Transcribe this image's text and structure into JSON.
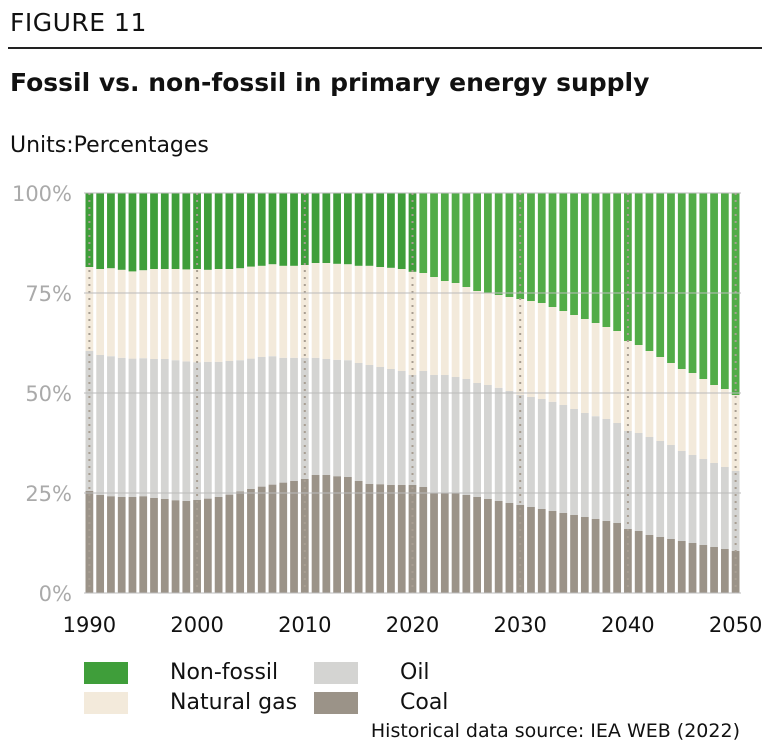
{
  "figure_label": "FIGURE 11",
  "title": "Fossil vs. non-fossil in primary energy supply",
  "units_label": "Units:",
  "units_value": "Percentages",
  "source": "Historical data source: IEA WEB (2022)",
  "colors": {
    "non_fossil": "#3f9e3a",
    "non_fossil_projection": "#52ac48",
    "natural_gas": "#f3eadb",
    "oil": "#d4d4d2",
    "coal": "#9b9388",
    "grid": "#bbbbbb",
    "tick_text": "#aaaaaa"
  },
  "chart_data": {
    "type": "bar",
    "stacked": true,
    "ylim": [
      0,
      100
    ],
    "yticks": [
      "0%",
      "25%",
      "50%",
      "75%",
      "100%"
    ],
    "xticks": [
      "1990",
      "2000",
      "2010",
      "2020",
      "2030",
      "2040",
      "2050"
    ],
    "legend_position": "bottom-left",
    "years": [
      1990,
      1991,
      1992,
      1993,
      1994,
      1995,
      1996,
      1997,
      1998,
      1999,
      2000,
      2001,
      2002,
      2003,
      2004,
      2005,
      2006,
      2007,
      2008,
      2009,
      2010,
      2011,
      2012,
      2013,
      2014,
      2015,
      2016,
      2017,
      2018,
      2019,
      2020,
      2021,
      2022,
      2023,
      2024,
      2025,
      2026,
      2027,
      2028,
      2029,
      2030,
      2031,
      2032,
      2033,
      2034,
      2035,
      2036,
      2037,
      2038,
      2039,
      2040,
      2041,
      2042,
      2043,
      2044,
      2045,
      2046,
      2047,
      2048,
      2049,
      2050
    ],
    "series": [
      {
        "name": "Coal",
        "key": "coal",
        "values": [
          25.5,
          24.5,
          24.2,
          24.0,
          24.0,
          24.2,
          23.8,
          23.5,
          23.2,
          23.0,
          23.3,
          23.6,
          24.0,
          24.6,
          25.4,
          26.0,
          26.6,
          27.1,
          27.6,
          28.0,
          28.5,
          29.5,
          29.5,
          29.2,
          29.0,
          28.0,
          27.3,
          27.2,
          27.0,
          27.0,
          27.0,
          26.5,
          25.0,
          25.0,
          25.0,
          24.5,
          24.0,
          23.5,
          23.0,
          22.5,
          22.0,
          21.5,
          21.0,
          20.5,
          20.0,
          19.5,
          19.0,
          18.5,
          18.0,
          17.5,
          16.0,
          15.5,
          14.5,
          14.0,
          13.5,
          13.0,
          12.5,
          12.0,
          11.5,
          11.0,
          10.5
        ]
      },
      {
        "name": "Oil",
        "key": "oil",
        "values": [
          35.0,
          35.0,
          35.0,
          34.8,
          34.6,
          34.5,
          34.7,
          35.0,
          35.0,
          34.9,
          34.4,
          34.2,
          33.8,
          33.4,
          32.8,
          32.6,
          32.4,
          32.1,
          31.2,
          30.8,
          30.3,
          29.3,
          29.0,
          29.1,
          29.2,
          29.5,
          29.7,
          29.3,
          29.0,
          28.5,
          27.5,
          29.0,
          29.5,
          29.5,
          29.0,
          29.0,
          28.5,
          28.5,
          28.3,
          28.0,
          27.5,
          27.5,
          27.5,
          27.3,
          27.0,
          26.5,
          26.0,
          25.7,
          25.5,
          25.0,
          24.5,
          24.5,
          24.5,
          24.0,
          23.5,
          22.5,
          22.0,
          21.5,
          21.0,
          20.5,
          20.0
        ]
      },
      {
        "name": "Natural gas",
        "key": "natural_gas",
        "values": [
          21.0,
          21.5,
          22.0,
          22.0,
          21.8,
          22.0,
          22.5,
          22.5,
          22.8,
          23.0,
          23.3,
          23.0,
          23.2,
          23.0,
          23.0,
          23.0,
          22.8,
          23.0,
          23.0,
          23.0,
          23.2,
          23.7,
          24.0,
          24.0,
          24.0,
          24.3,
          24.8,
          25.0,
          25.3,
          25.5,
          25.8,
          24.5,
          24.5,
          23.5,
          23.5,
          23.0,
          23.0,
          23.0,
          23.2,
          23.5,
          24.0,
          24.0,
          24.0,
          23.7,
          23.5,
          23.5,
          23.5,
          23.3,
          23.0,
          23.0,
          22.5,
          22.0,
          21.5,
          21.0,
          20.5,
          20.5,
          20.5,
          20.0,
          19.5,
          19.5,
          19.0
        ]
      },
      {
        "name": "Non-fossil",
        "key": "non_fossil",
        "values": [
          18.5,
          19.0,
          18.8,
          19.2,
          19.6,
          19.3,
          19.0,
          19.0,
          19.0,
          19.1,
          19.0,
          19.2,
          19.0,
          19.0,
          18.8,
          18.4,
          18.2,
          17.8,
          18.2,
          18.2,
          18.0,
          17.5,
          17.5,
          17.7,
          17.8,
          18.2,
          18.2,
          18.5,
          18.7,
          19.0,
          19.7,
          20.0,
          21.0,
          22.0,
          22.5,
          23.5,
          24.5,
          25.0,
          25.5,
          26.0,
          26.5,
          27.0,
          27.5,
          28.5,
          29.5,
          30.5,
          31.5,
          32.5,
          33.5,
          34.5,
          37.0,
          38.0,
          39.5,
          41.0,
          42.5,
          44.0,
          45.0,
          46.5,
          48.0,
          49.0,
          50.5
        ]
      }
    ],
    "legend": [
      {
        "name": "Non-fossil",
        "key": "non_fossil"
      },
      {
        "name": "Oil",
        "key": "oil"
      },
      {
        "name": "Natural gas",
        "key": "natural_gas"
      },
      {
        "name": "Coal",
        "key": "coal"
      }
    ]
  }
}
